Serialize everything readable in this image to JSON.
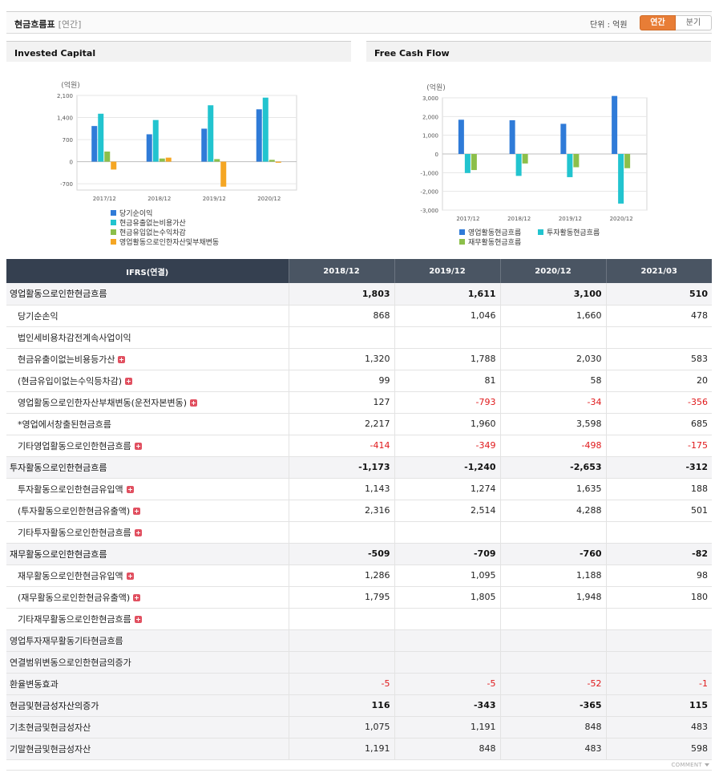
{
  "header": {
    "title": "현금흐름표",
    "subtitle": "[연간]",
    "unit": "단위 : 억원",
    "tab_annual": "연간",
    "tab_quarter": "분기"
  },
  "colors": {
    "blue": "#2f7bd8",
    "teal": "#22c4cf",
    "green": "#8cbf4a",
    "orange": "#f5a623",
    "negative": "#e0191b"
  },
  "chart_data": [
    {
      "type": "bar",
      "title": "Invested Capital",
      "ylabel": "(억원)",
      "categories": [
        "2017/12",
        "2018/12",
        "2019/12",
        "2020/12"
      ],
      "ylim": [
        -900,
        2100
      ],
      "yticks": [
        2100,
        1400,
        700,
        0,
        -700
      ],
      "ytick_labels": [
        "2,100",
        "1,400",
        "700",
        "0",
        "-700"
      ],
      "series": [
        {
          "name": "당기순이익",
          "color": "#2f7bd8",
          "values": [
            1130,
            868,
            1046,
            1660
          ]
        },
        {
          "name": "현금유출없는비용가산",
          "color": "#22c4cf",
          "values": [
            1520,
            1320,
            1788,
            2030
          ]
        },
        {
          "name": "현금유입없는수익차감",
          "color": "#8cbf4a",
          "values": [
            320,
            99,
            81,
            58
          ]
        },
        {
          "name": "영업활동으로인한자산및부채변동",
          "color": "#f5a623",
          "values": [
            -250,
            127,
            -793,
            -34
          ]
        }
      ],
      "legend_position": "bottom"
    },
    {
      "type": "bar",
      "title": "Free Cash Flow",
      "ylabel": "(억원)",
      "categories": [
        "2017/12",
        "2018/12",
        "2019/12",
        "2020/12"
      ],
      "ylim": [
        -3000,
        3000
      ],
      "yticks": [
        3000,
        2000,
        1000,
        0,
        -1000,
        -2000,
        -3000
      ],
      "ytick_labels": [
        "3,000",
        "2,000",
        "1,000",
        "0",
        "-1,000",
        "-2,000",
        "-3,000"
      ],
      "series": [
        {
          "name": "영업활동현금흐름",
          "color": "#2f7bd8",
          "values": [
            1830,
            1803,
            1611,
            3100
          ]
        },
        {
          "name": "투자활동현금흐름",
          "color": "#22c4cf",
          "values": [
            -1020,
            -1173,
            -1240,
            -2653
          ]
        },
        {
          "name": "재무활동현금흐름",
          "color": "#8cbf4a",
          "values": [
            -860,
            -509,
            -709,
            -760
          ]
        }
      ],
      "legend_position": "bottom"
    }
  ],
  "table": {
    "corner": "IFRS(연결)",
    "columns": [
      "2018/12",
      "2019/12",
      "2020/12",
      "2021/03"
    ],
    "rows": [
      {
        "label": "영업활동으로인한현금흐름",
        "level": 0,
        "major": true,
        "expand": false,
        "values": [
          "1,803",
          "1,611",
          "3,100",
          "510"
        ]
      },
      {
        "label": "당기순손익",
        "level": 1,
        "major": false,
        "expand": false,
        "values": [
          "868",
          "1,046",
          "1,660",
          "478"
        ]
      },
      {
        "label": "법인세비용차감전계속사업이익",
        "level": 1,
        "major": false,
        "expand": false,
        "values": [
          "",
          "",
          "",
          ""
        ]
      },
      {
        "label": "현금유출이없는비용등가산",
        "level": 1,
        "major": false,
        "expand": true,
        "values": [
          "1,320",
          "1,788",
          "2,030",
          "583"
        ]
      },
      {
        "label": "(현금유입이없는수익등차감)",
        "level": 1,
        "major": false,
        "expand": true,
        "values": [
          "99",
          "81",
          "58",
          "20"
        ]
      },
      {
        "label": "영업활동으로인한자산부채변동(운전자본변동)",
        "level": 1,
        "major": false,
        "expand": true,
        "values": [
          "127",
          "-793",
          "-34",
          "-356"
        ]
      },
      {
        "label": "*영업에서창출된현금흐름",
        "level": 1,
        "major": false,
        "expand": false,
        "values": [
          "2,217",
          "1,960",
          "3,598",
          "685"
        ]
      },
      {
        "label": "기타영업활동으로인한현금흐름",
        "level": 1,
        "major": false,
        "expand": true,
        "values": [
          "-414",
          "-349",
          "-498",
          "-175"
        ]
      },
      {
        "label": "투자활동으로인한현금흐름",
        "level": 0,
        "major": true,
        "expand": false,
        "values": [
          "-1,173",
          "-1,240",
          "-2,653",
          "-312"
        ]
      },
      {
        "label": "투자활동으로인한현금유입액",
        "level": 1,
        "major": false,
        "expand": true,
        "values": [
          "1,143",
          "1,274",
          "1,635",
          "188"
        ]
      },
      {
        "label": "(투자활동으로인한현금유출액)",
        "level": 1,
        "major": false,
        "expand": true,
        "values": [
          "2,316",
          "2,514",
          "4,288",
          "501"
        ]
      },
      {
        "label": "기타투자활동으로인한현금흐름",
        "level": 1,
        "major": false,
        "expand": true,
        "values": [
          "",
          "",
          "",
          ""
        ]
      },
      {
        "label": "재무활동으로인한현금흐름",
        "level": 0,
        "major": true,
        "expand": false,
        "values": [
          "-509",
          "-709",
          "-760",
          "-82"
        ]
      },
      {
        "label": "재무활동으로인한현금유입액",
        "level": 1,
        "major": false,
        "expand": true,
        "values": [
          "1,286",
          "1,095",
          "1,188",
          "98"
        ]
      },
      {
        "label": "(재무활동으로인한현금유출액)",
        "level": 1,
        "major": false,
        "expand": true,
        "values": [
          "1,795",
          "1,805",
          "1,948",
          "180"
        ]
      },
      {
        "label": "기타재무활동으로인한현금흐름",
        "level": 1,
        "major": false,
        "expand": true,
        "values": [
          "",
          "",
          "",
          ""
        ]
      },
      {
        "label": "영업투자재무활동기타현금흐름",
        "level": 0,
        "major": false,
        "expand": false,
        "values": [
          "",
          "",
          "",
          ""
        ]
      },
      {
        "label": "연결범위변동으로인한현금의증가",
        "level": 0,
        "major": false,
        "expand": false,
        "values": [
          "",
          "",
          "",
          ""
        ]
      },
      {
        "label": "환율변동효과",
        "level": 0,
        "major": false,
        "expand": false,
        "values": [
          "-5",
          "-5",
          "-52",
          "-1"
        ]
      },
      {
        "label": "현금및현금성자산의증가",
        "level": 0,
        "major": true,
        "expand": false,
        "values": [
          "116",
          "-343",
          "-365",
          "115"
        ]
      },
      {
        "label": "기초현금및현금성자산",
        "level": 0,
        "major": false,
        "expand": false,
        "values": [
          "1,075",
          "1,191",
          "848",
          "483"
        ]
      },
      {
        "label": "기말현금및현금성자산",
        "level": 0,
        "major": false,
        "expand": false,
        "values": [
          "1,191",
          "848",
          "483",
          "598"
        ]
      }
    ]
  },
  "footer": {
    "comment": "COMMENT"
  }
}
